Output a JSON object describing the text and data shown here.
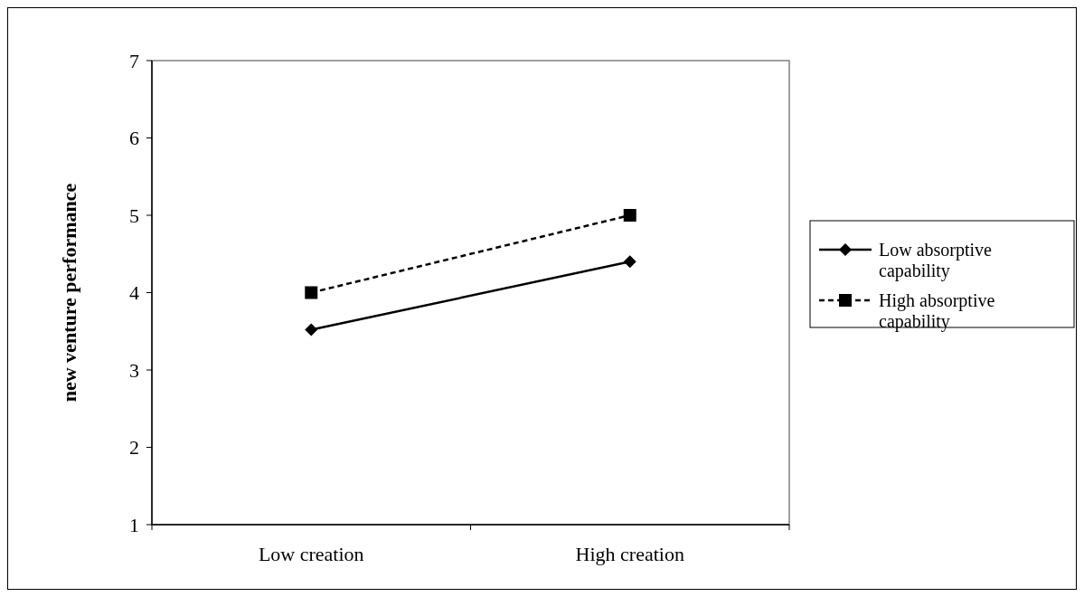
{
  "chart_data": {
    "type": "line",
    "ylabel": "new venture performance",
    "categories": [
      "Low creation",
      "High creation"
    ],
    "ylim": [
      1,
      7
    ],
    "yticks": [
      1,
      2,
      3,
      4,
      5,
      6,
      7
    ],
    "grid": false,
    "legend": "right",
    "series": [
      {
        "name": "Low absorptive capability",
        "color": "#000000",
        "values": [
          3.52,
          4.4
        ],
        "marker": "diamond",
        "line_style": "solid"
      },
      {
        "name": "High absorptive capability",
        "color": "#000000",
        "values": [
          4.0,
          5.0
        ],
        "marker": "square",
        "line_style": "dashed"
      }
    ]
  }
}
